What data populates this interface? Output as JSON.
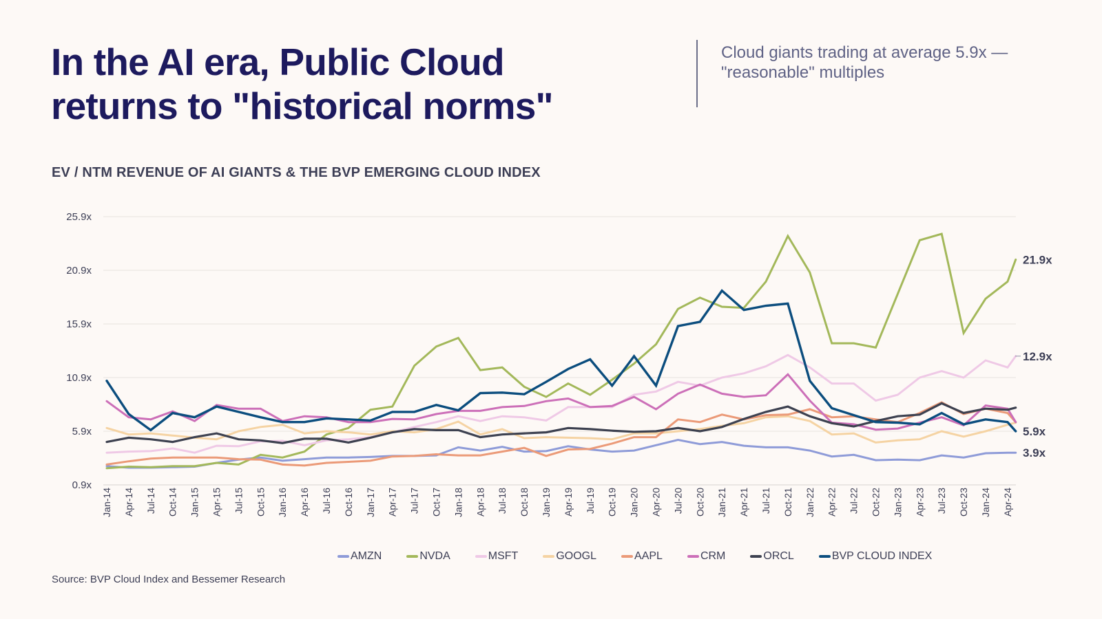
{
  "header": {
    "title_lines": [
      "In the AI era, Public Cloud",
      "returns to \"historical norms\""
    ],
    "subtitle_lines": [
      "Cloud giants trading at average 5.9x —",
      "\"reasonable\" multiples"
    ]
  },
  "section_title": "EV / NTM REVENUE OF AI GIANTS & THE BVP EMERGING CLOUD INDEX",
  "source": "Source: BVP Cloud Index and Bessemer Research",
  "colors": {
    "background": "#fdf9f6",
    "title": "#1d1a5e",
    "gridline": "#e6e2df"
  },
  "chart_data": {
    "type": "line",
    "title": "EV / NTM REVENUE OF AI GIANTS & THE BVP EMERGING CLOUD INDEX",
    "xlabel": "",
    "ylabel": "",
    "ylim": [
      0.9,
      25.9
    ],
    "y_ticks": [
      "25.9x",
      "20.9x",
      "15.9x",
      "10.9x",
      "5.9x",
      "0.9x"
    ],
    "y_tick_values": [
      25.9,
      20.9,
      15.9,
      10.9,
      5.9,
      0.9
    ],
    "grid": true,
    "legend_position": "bottom-right",
    "x": [
      "Jan-14",
      "Apr-14",
      "Jul-14",
      "Oct-14",
      "Jan-15",
      "Apr-15",
      "Jul-15",
      "Oct-15",
      "Jan-16",
      "Apr-16",
      "Jul-16",
      "Oct-16",
      "Jan-17",
      "Apr-17",
      "Jul-17",
      "Oct-17",
      "Jan-18",
      "Apr-18",
      "Jul-18",
      "Oct-18",
      "Jan-19",
      "Apr-19",
      "Jul-19",
      "Oct-19",
      "Jan-20",
      "Apr-20",
      "Jul-20",
      "Oct-20",
      "Jan-21",
      "Apr-21",
      "Jul-21",
      "Oct-21",
      "Jan-22",
      "Apr-22",
      "Jul-22",
      "Oct-22",
      "Jan-23",
      "Apr-23",
      "Jul-23",
      "Oct-23",
      "Jan-24",
      "Apr-24",
      ""
    ],
    "series": [
      {
        "name": "AMZN",
        "color": "#8e9bd8",
        "width": 3,
        "values": [
          2.65,
          2.5,
          2.5,
          2.55,
          2.6,
          2.95,
          3.25,
          3.45,
          3.15,
          3.3,
          3.45,
          3.45,
          3.5,
          3.6,
          3.6,
          3.65,
          4.4,
          4.1,
          4.45,
          4.0,
          4.05,
          4.5,
          4.2,
          4.0,
          4.1,
          4.6,
          5.1,
          4.7,
          4.9,
          4.55,
          4.4,
          4.4,
          4.1,
          3.55,
          3.7,
          3.2,
          3.25,
          3.2,
          3.65,
          3.45,
          3.85,
          3.9,
          3.9
        ]
      },
      {
        "name": "NVDA",
        "color": "#a3b85a",
        "width": 3,
        "values": [
          2.45,
          2.6,
          2.55,
          2.65,
          2.65,
          2.95,
          2.8,
          3.7,
          3.45,
          4.0,
          5.6,
          6.2,
          7.9,
          8.2,
          12.0,
          13.8,
          14.6,
          11.6,
          11.85,
          10.05,
          9.1,
          10.35,
          9.3,
          10.7,
          12.2,
          14.0,
          17.3,
          18.35,
          17.5,
          17.4,
          19.85,
          24.1,
          20.7,
          14.1,
          14.1,
          13.7,
          18.7,
          23.7,
          24.3,
          15.05,
          18.25,
          19.85,
          21.9
        ]
      },
      {
        "name": "MSFT",
        "color": "#efc9e6",
        "width": 3,
        "values": [
          3.9,
          4.0,
          4.05,
          4.3,
          3.9,
          4.55,
          4.5,
          4.95,
          5.0,
          4.6,
          5.05,
          5.15,
          5.35,
          5.8,
          6.3,
          6.75,
          7.3,
          6.85,
          7.3,
          7.2,
          6.9,
          8.15,
          8.15,
          8.15,
          9.3,
          9.6,
          10.5,
          10.15,
          10.9,
          11.3,
          11.95,
          13.0,
          11.85,
          10.35,
          10.35,
          8.75,
          9.3,
          10.9,
          11.5,
          10.9,
          12.5,
          11.85,
          12.9
        ]
      },
      {
        "name": "GOOGL",
        "color": "#f5d3a3",
        "width": 3,
        "values": [
          6.2,
          5.6,
          5.7,
          5.5,
          5.3,
          5.15,
          5.9,
          6.3,
          6.5,
          5.7,
          5.9,
          5.8,
          5.6,
          5.9,
          5.8,
          6.1,
          6.8,
          5.6,
          6.1,
          5.25,
          5.35,
          5.3,
          5.25,
          5.15,
          5.7,
          5.7,
          5.9,
          6.1,
          6.4,
          6.65,
          7.2,
          7.3,
          6.85,
          5.6,
          5.7,
          4.85,
          5.05,
          5.15,
          5.9,
          5.4,
          5.9,
          6.5,
          6.7
        ]
      },
      {
        "name": "AAPL",
        "color": "#eb9a78",
        "width": 3,
        "values": [
          2.8,
          3.1,
          3.35,
          3.45,
          3.45,
          3.45,
          3.3,
          3.25,
          2.8,
          2.7,
          2.95,
          3.05,
          3.15,
          3.55,
          3.6,
          3.75,
          3.65,
          3.65,
          4.0,
          4.35,
          3.6,
          4.2,
          4.25,
          4.75,
          5.35,
          5.35,
          7.0,
          6.75,
          7.45,
          7.0,
          7.4,
          7.45,
          7.95,
          7.2,
          7.3,
          7.0,
          6.75,
          7.6,
          8.6,
          7.5,
          8.0,
          7.6,
          6.75
        ]
      },
      {
        "name": "CRM",
        "color": "#cc6fb8",
        "width": 3,
        "values": [
          8.7,
          7.2,
          7.0,
          7.75,
          6.85,
          8.35,
          8.0,
          8.0,
          6.85,
          7.3,
          7.2,
          6.75,
          6.75,
          7.05,
          7.0,
          7.5,
          7.8,
          7.8,
          8.15,
          8.25,
          8.7,
          8.95,
          8.15,
          8.25,
          9.1,
          7.95,
          9.4,
          10.25,
          9.4,
          9.1,
          9.25,
          11.2,
          8.75,
          6.7,
          6.55,
          6.05,
          6.15,
          6.7,
          7.2,
          6.45,
          8.3,
          8.0,
          6.75
        ]
      },
      {
        "name": "ORCL",
        "color": "#3d4150",
        "width": 3.2,
        "values": [
          4.9,
          5.3,
          5.15,
          4.9,
          5.35,
          5.7,
          5.15,
          5.05,
          4.8,
          5.2,
          5.2,
          4.85,
          5.3,
          5.8,
          6.1,
          6.0,
          6.0,
          5.35,
          5.6,
          5.7,
          5.8,
          6.2,
          6.1,
          5.95,
          5.85,
          5.9,
          6.2,
          5.9,
          6.3,
          7.05,
          7.7,
          8.2,
          7.3,
          6.65,
          6.35,
          6.85,
          7.3,
          7.45,
          8.5,
          7.6,
          8.0,
          7.9,
          8.1
        ]
      },
      {
        "name": "BVP CLOUD INDEX",
        "color": "#0b4d7e",
        "width": 3.4,
        "values": [
          10.6,
          7.5,
          6.0,
          7.6,
          7.2,
          8.2,
          7.7,
          7.2,
          6.75,
          6.75,
          7.1,
          7.0,
          6.9,
          7.7,
          7.7,
          8.35,
          7.85,
          9.45,
          9.5,
          9.35,
          10.5,
          11.7,
          12.6,
          10.15,
          12.9,
          10.15,
          15.7,
          16.1,
          19.0,
          17.2,
          17.6,
          17.8,
          10.6,
          8.05,
          7.4,
          6.75,
          6.7,
          6.55,
          7.6,
          6.55,
          7.0,
          6.75,
          5.9
        ]
      }
    ],
    "end_labels": [
      {
        "text": "21.9x",
        "value": 21.9
      },
      {
        "text": "12.9x",
        "value": 12.9
      },
      {
        "text": "5.9x",
        "value": 5.9
      },
      {
        "text": "3.9x",
        "value": 3.9
      }
    ]
  }
}
